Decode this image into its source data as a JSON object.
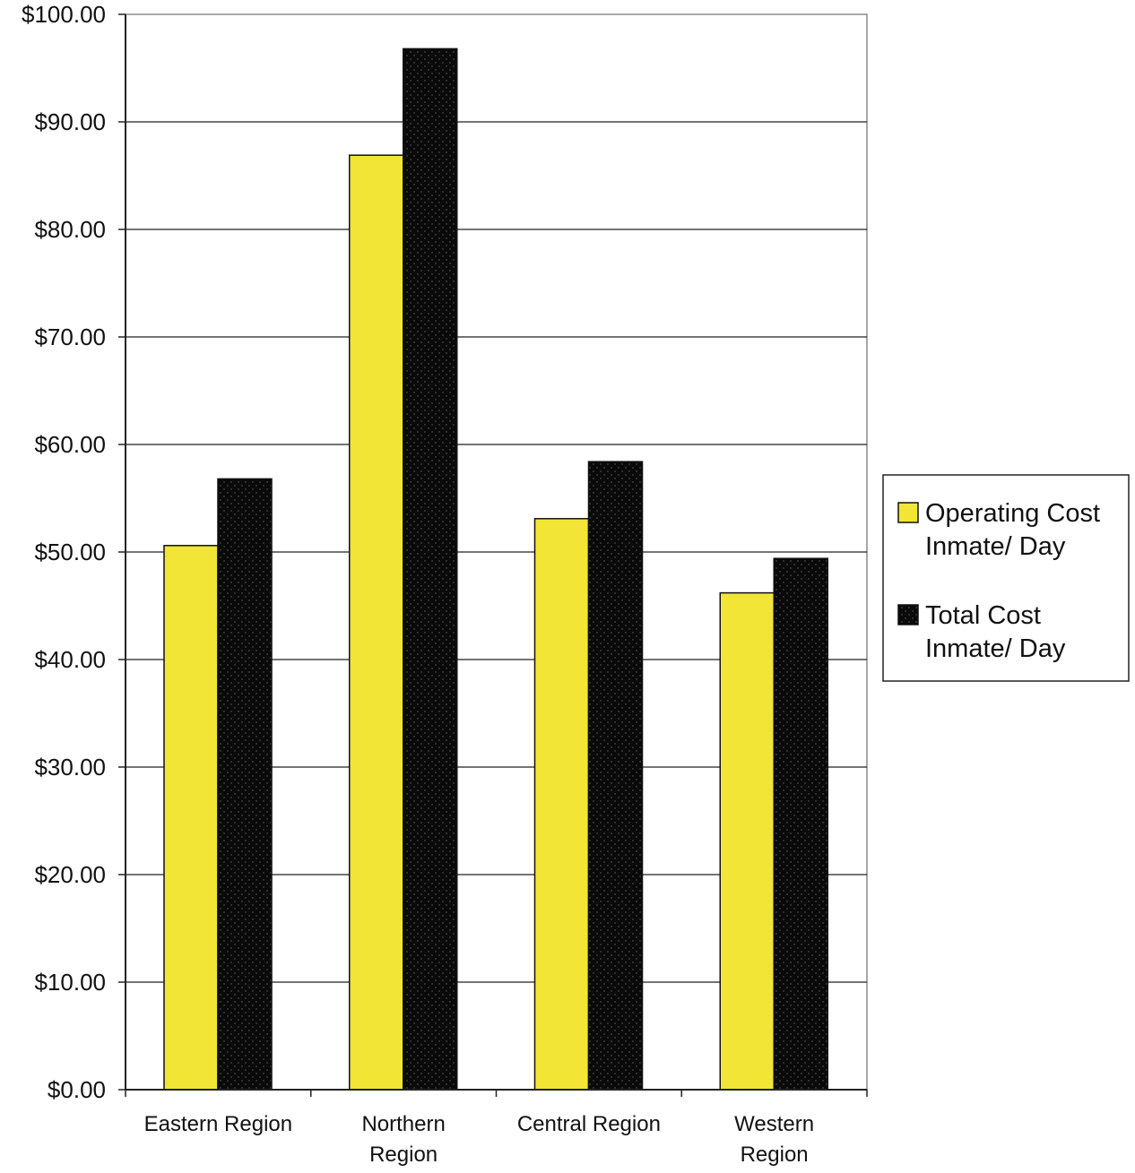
{
  "chart_data": {
    "type": "bar",
    "categories": [
      [
        "Eastern Region"
      ],
      [
        "Northern",
        "Region"
      ],
      [
        "Central Region"
      ],
      [
        "Western",
        "Region"
      ]
    ],
    "series": [
      {
        "name": [
          "Operating Cost",
          "Inmate/ Day"
        ],
        "values": [
          50.6,
          86.9,
          53.1,
          46.2
        ],
        "color": "#f2e536"
      },
      {
        "name": [
          "Total Cost",
          "Inmate/ Day"
        ],
        "values": [
          56.8,
          96.8,
          58.4,
          49.4
        ],
        "color": "#0a0a0a"
      }
    ],
    "y_ticks": [
      "$0.00",
      "$10.00",
      "$20.00",
      "$30.00",
      "$40.00",
      "$50.00",
      "$60.00",
      "$70.00",
      "$80.00",
      "$90.00",
      "$100.00"
    ],
    "ylim": [
      0,
      100
    ],
    "grid": true,
    "legend_position": "right"
  }
}
